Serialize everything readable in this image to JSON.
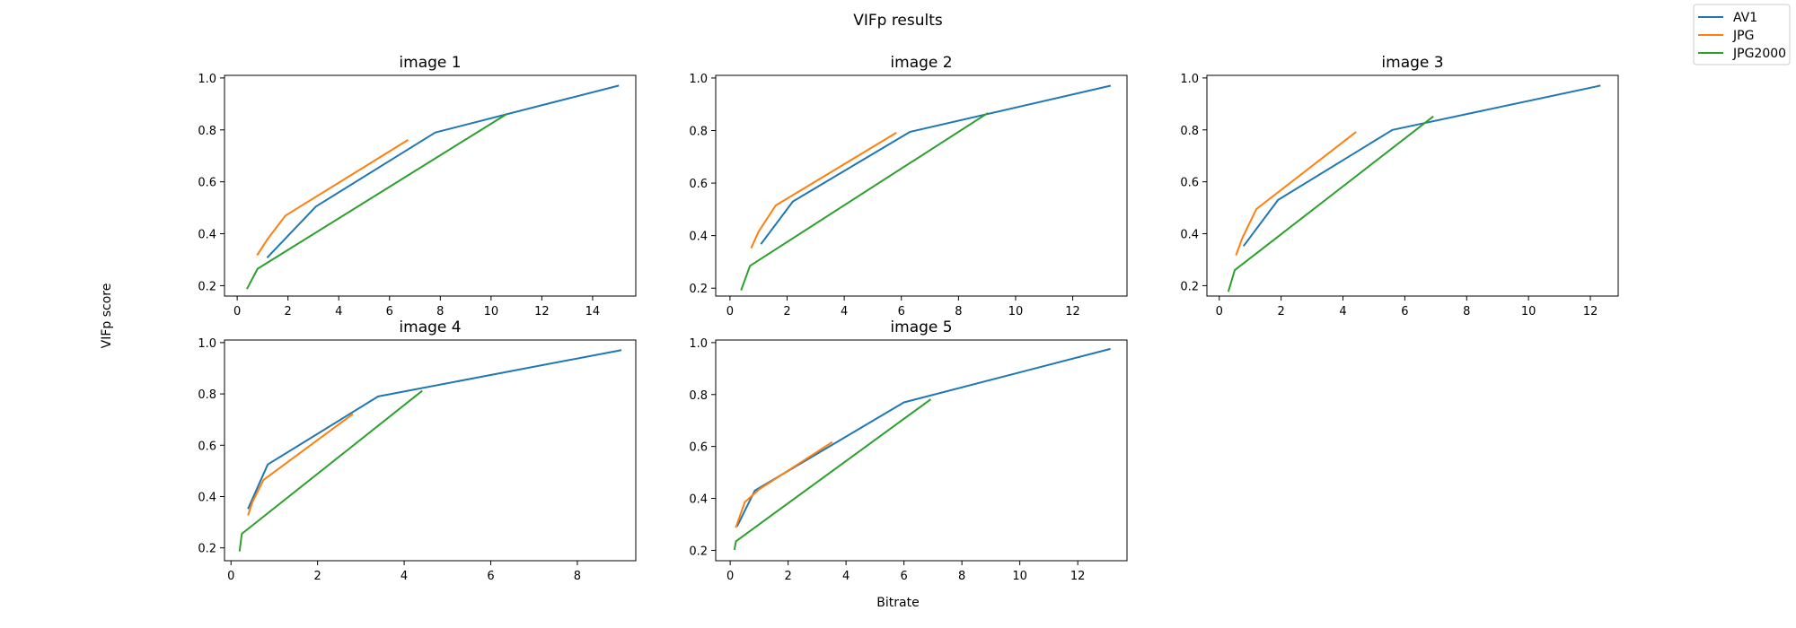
{
  "figure": {
    "suptitle": "VIFp results",
    "xlabel": "Bitrate",
    "ylabel": "VIFp score"
  },
  "legend": {
    "placement": "top-right",
    "entries": [
      {
        "name": "AV1",
        "color": "#1f77b4"
      },
      {
        "name": "JPG",
        "color": "#ff7f0e"
      },
      {
        "name": "JPG2000",
        "color": "#2ca02c"
      }
    ]
  },
  "chart_data": [
    {
      "type": "line",
      "title": "image 1",
      "xlim": [
        -0.5,
        15.7
      ],
      "ylim": [
        0.16,
        1.01
      ],
      "xticks": [
        0,
        2,
        4,
        6,
        8,
        10,
        12,
        14
      ],
      "yticks": [
        0.2,
        0.4,
        0.6,
        0.8,
        1.0
      ],
      "grid": false,
      "series": [
        {
          "name": "AV1",
          "x": [
            1.2,
            3.1,
            7.8,
            15.0
          ],
          "y": [
            0.31,
            0.505,
            0.79,
            0.97
          ]
        },
        {
          "name": "JPG",
          "x": [
            0.8,
            1.2,
            1.9,
            6.7
          ],
          "y": [
            0.32,
            0.38,
            0.47,
            0.76
          ]
        },
        {
          "name": "JPG2000",
          "x": [
            0.4,
            0.8,
            10.6
          ],
          "y": [
            0.19,
            0.265,
            0.86
          ]
        }
      ]
    },
    {
      "type": "line",
      "title": "image 2",
      "xlim": [
        -0.5,
        13.9
      ],
      "ylim": [
        0.17,
        1.01
      ],
      "xticks": [
        0,
        2,
        4,
        6,
        8,
        10,
        12
      ],
      "yticks": [
        0.2,
        0.4,
        0.6,
        0.8,
        1.0
      ],
      "grid": false,
      "series": [
        {
          "name": "AV1",
          "x": [
            1.1,
            2.2,
            6.3,
            13.3
          ],
          "y": [
            0.37,
            0.53,
            0.795,
            0.97
          ]
        },
        {
          "name": "JPG",
          "x": [
            0.75,
            1.0,
            1.6,
            5.8
          ],
          "y": [
            0.355,
            0.415,
            0.515,
            0.79
          ]
        },
        {
          "name": "JPG2000",
          "x": [
            0.4,
            0.7,
            9.0
          ],
          "y": [
            0.195,
            0.285,
            0.865
          ]
        }
      ]
    },
    {
      "type": "line",
      "title": "image 3",
      "xlim": [
        -0.4,
        12.9
      ],
      "ylim": [
        0.16,
        1.01
      ],
      "xticks": [
        0,
        2,
        4,
        6,
        8,
        10,
        12
      ],
      "yticks": [
        0.2,
        0.4,
        0.6,
        0.8,
        1.0
      ],
      "grid": false,
      "series": [
        {
          "name": "AV1",
          "x": [
            0.8,
            1.9,
            5.6,
            12.3
          ],
          "y": [
            0.355,
            0.53,
            0.8,
            0.97
          ]
        },
        {
          "name": "JPG",
          "x": [
            0.55,
            0.75,
            1.2,
            4.4
          ],
          "y": [
            0.32,
            0.385,
            0.495,
            0.79
          ]
        },
        {
          "name": "JPG2000",
          "x": [
            0.3,
            0.5,
            6.9
          ],
          "y": [
            0.18,
            0.26,
            0.85
          ]
        }
      ]
    },
    {
      "type": "line",
      "title": "image 4",
      "xlim": [
        -0.15,
        9.35
      ],
      "ylim": [
        0.15,
        1.01
      ],
      "xticks": [
        0,
        2,
        4,
        6,
        8
      ],
      "yticks": [
        0.2,
        0.4,
        0.6,
        0.8,
        1.0
      ],
      "grid": false,
      "series": [
        {
          "name": "AV1",
          "x": [
            0.4,
            0.85,
            3.4,
            9.0
          ],
          "y": [
            0.355,
            0.525,
            0.79,
            0.97
          ]
        },
        {
          "name": "JPG",
          "x": [
            0.4,
            0.5,
            0.75,
            2.8
          ],
          "y": [
            0.33,
            0.38,
            0.465,
            0.72
          ]
        },
        {
          "name": "JPG2000",
          "x": [
            0.2,
            0.25,
            4.4
          ],
          "y": [
            0.19,
            0.255,
            0.81
          ]
        }
      ]
    },
    {
      "type": "line",
      "title": "image 5",
      "xlim": [
        -0.5,
        13.7
      ],
      "ylim": [
        0.16,
        1.01
      ],
      "xticks": [
        0,
        2,
        4,
        6,
        8,
        10,
        12
      ],
      "yticks": [
        0.2,
        0.4,
        0.6,
        0.8,
        1.0
      ],
      "grid": false,
      "series": [
        {
          "name": "AV1",
          "x": [
            0.25,
            0.85,
            6.0,
            13.1
          ],
          "y": [
            0.295,
            0.43,
            0.77,
            0.975
          ]
        },
        {
          "name": "JPG",
          "x": [
            0.2,
            0.5,
            1.0,
            3.5
          ],
          "y": [
            0.29,
            0.385,
            0.435,
            0.615
          ]
        },
        {
          "name": "JPG2000",
          "x": [
            0.15,
            0.2,
            6.9
          ],
          "y": [
            0.205,
            0.235,
            0.78
          ]
        }
      ]
    }
  ]
}
